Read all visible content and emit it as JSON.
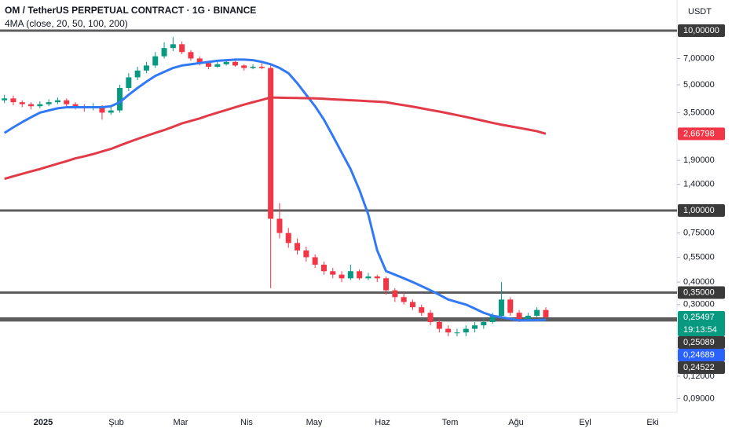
{
  "chart_data": {
    "type": "candlestick",
    "title": "OM / TetherUS PERPETUAL CONTRACT · 1G · BINANCE",
    "subtitle": "4MA (close, 20, 50, 100, 200)",
    "currency": "USDT",
    "log_scale": true,
    "ylim": [
      0.0755,
      14.8
    ],
    "yticks": [
      {
        "value": 7,
        "label": "7,00000"
      },
      {
        "value": 5,
        "label": "5,00000"
      },
      {
        "value": 3.5,
        "label": "3,50000"
      },
      {
        "value": 1.9,
        "label": "1,90000"
      },
      {
        "value": 1.4,
        "label": "1,40000"
      },
      {
        "value": 0.75,
        "label": "0,75000"
      },
      {
        "value": 0.55,
        "label": "0,55000"
      },
      {
        "value": 0.4,
        "label": "0,40000"
      },
      {
        "value": 0.3,
        "label": "0,30000"
      },
      {
        "value": 0.12,
        "label": "0,12000"
      },
      {
        "value": 0.09,
        "label": "0,09000"
      }
    ],
    "xtick_labels": [
      "2025",
      "Şub",
      "Mar",
      "Nis",
      "May",
      "Haz",
      "Tem",
      "Ağu",
      "Eyl",
      "Eki"
    ],
    "up_color": "#089981",
    "down_color": "#f23645",
    "open": [
      4.1,
      4.2,
      4.0,
      3.9,
      3.8,
      3.9,
      4.0,
      4.1,
      3.9,
      3.8,
      3.7,
      3.8,
      3.5,
      3.6,
      4.8,
      5.5,
      6.0,
      6.4,
      7.2,
      8.0,
      8.4,
      7.6,
      7.0,
      6.6,
      6.3,
      6.5,
      6.7,
      6.4,
      6.2,
      6.3,
      6.2,
      0.9,
      0.75,
      0.66,
      0.6,
      0.55,
      0.5,
      0.46,
      0.44,
      0.42,
      0.46,
      0.42,
      0.43,
      0.42,
      0.36,
      0.33,
      0.31,
      0.29,
      0.27,
      0.24,
      0.22,
      0.21,
      0.21,
      0.22,
      0.23,
      0.24,
      0.26,
      0.32,
      0.27,
      0.25,
      0.26,
      0.28
    ],
    "high": [
      4.4,
      4.35,
      4.1,
      4.0,
      4.05,
      4.15,
      4.25,
      4.2,
      4.0,
      3.9,
      3.95,
      3.85,
      3.8,
      5.0,
      5.8,
      6.3,
      6.7,
      7.6,
      8.6,
      9.2,
      8.7,
      7.8,
      7.2,
      6.8,
      6.7,
      6.9,
      6.8,
      6.5,
      6.5,
      6.6,
      6.4,
      1.1,
      0.8,
      0.7,
      0.63,
      0.57,
      0.52,
      0.48,
      0.46,
      0.5,
      0.47,
      0.45,
      0.44,
      0.43,
      0.37,
      0.35,
      0.32,
      0.3,
      0.28,
      0.25,
      0.23,
      0.22,
      0.23,
      0.24,
      0.25,
      0.27,
      0.4,
      0.33,
      0.28,
      0.27,
      0.29,
      0.29
    ],
    "low": [
      3.95,
      3.85,
      3.75,
      3.65,
      3.7,
      3.8,
      3.9,
      3.75,
      3.65,
      3.55,
      3.6,
      3.2,
      3.4,
      3.5,
      4.6,
      5.3,
      5.8,
      6.2,
      7.0,
      7.7,
      7.4,
      6.8,
      6.4,
      6.1,
      6.2,
      6.4,
      6.3,
      6.0,
      6.1,
      6.1,
      0.37,
      0.7,
      0.62,
      0.57,
      0.52,
      0.48,
      0.44,
      0.42,
      0.4,
      0.41,
      0.41,
      0.41,
      0.4,
      0.34,
      0.31,
      0.3,
      0.28,
      0.26,
      0.23,
      0.21,
      0.2,
      0.2,
      0.2,
      0.21,
      0.22,
      0.235,
      0.25,
      0.26,
      0.24,
      0.245,
      0.255,
      0.25
    ],
    "close": [
      4.2,
      4.0,
      3.9,
      3.8,
      3.9,
      4.0,
      4.1,
      3.9,
      3.8,
      3.7,
      3.8,
      3.5,
      3.6,
      4.8,
      5.5,
      6.0,
      6.4,
      7.2,
      8.0,
      8.4,
      7.6,
      7.0,
      6.6,
      6.3,
      6.5,
      6.7,
      6.4,
      6.2,
      6.3,
      6.2,
      0.9,
      0.75,
      0.66,
      0.6,
      0.55,
      0.5,
      0.46,
      0.44,
      0.42,
      0.46,
      0.42,
      0.43,
      0.42,
      0.36,
      0.33,
      0.31,
      0.29,
      0.27,
      0.24,
      0.22,
      0.21,
      0.21,
      0.22,
      0.23,
      0.24,
      0.26,
      0.32,
      0.27,
      0.25,
      0.26,
      0.28,
      0.255
    ],
    "moving_averages": [
      {
        "color": "#3179f5",
        "values": [
          2.7,
          2.9,
          3.1,
          3.3,
          3.5,
          3.6,
          3.7,
          3.75,
          3.75,
          3.75,
          3.75,
          3.75,
          3.8,
          4.0,
          4.4,
          4.8,
          5.2,
          5.6,
          5.9,
          6.2,
          6.4,
          6.5,
          6.6,
          6.7,
          6.8,
          6.85,
          6.9,
          6.9,
          6.85,
          6.7,
          6.5,
          6.2,
          5.8,
          5.1,
          4.4,
          3.8,
          3.2,
          2.6,
          2.1,
          1.7,
          1.3,
          0.95,
          0.6,
          0.46,
          0.44,
          0.42,
          0.4,
          0.38,
          0.36,
          0.34,
          0.32,
          0.31,
          0.3,
          0.285,
          0.27,
          0.26,
          0.255,
          0.25,
          0.245,
          0.245,
          0.246,
          0.247
        ]
      },
      {
        "color": "#e23a48",
        "values": [
          1.5,
          1.55,
          1.6,
          1.65,
          1.7,
          1.76,
          1.82,
          1.88,
          1.95,
          2.0,
          2.06,
          2.13,
          2.2,
          2.3,
          2.4,
          2.5,
          2.6,
          2.7,
          2.8,
          2.92,
          3.05,
          3.15,
          3.25,
          3.38,
          3.5,
          3.62,
          3.75,
          3.88,
          4.0,
          4.12,
          4.25,
          4.24,
          4.23,
          4.22,
          4.21,
          4.2,
          4.18,
          4.15,
          4.13,
          4.1,
          4.08,
          4.05,
          4.03,
          4.0,
          3.92,
          3.85,
          3.78,
          3.7,
          3.62,
          3.55,
          3.47,
          3.39,
          3.31,
          3.23,
          3.15,
          3.07,
          3.0,
          2.94,
          2.88,
          2.82,
          2.76,
          2.67
        ]
      }
    ],
    "levels": [
      {
        "value": 10,
        "label": "10,00000"
      },
      {
        "value": 1,
        "label": "1,00000"
      },
      {
        "value": 0.35,
        "label": "0,35000"
      },
      {
        "value": 0.25089,
        "label": "0,25089"
      },
      {
        "value": 0.24522,
        "label": "0,24522"
      }
    ],
    "level_color": "#5d5d5d",
    "price_labels": [
      {
        "value": 2.66798,
        "label": "2,66798",
        "color": "#f23645"
      },
      {
        "value": 0.25497,
        "label": "0,25497",
        "countdown": "19:13:54",
        "color": "#089981"
      },
      {
        "value": 0.24689,
        "label": "0,24689",
        "color": "#2962ff"
      }
    ]
  }
}
